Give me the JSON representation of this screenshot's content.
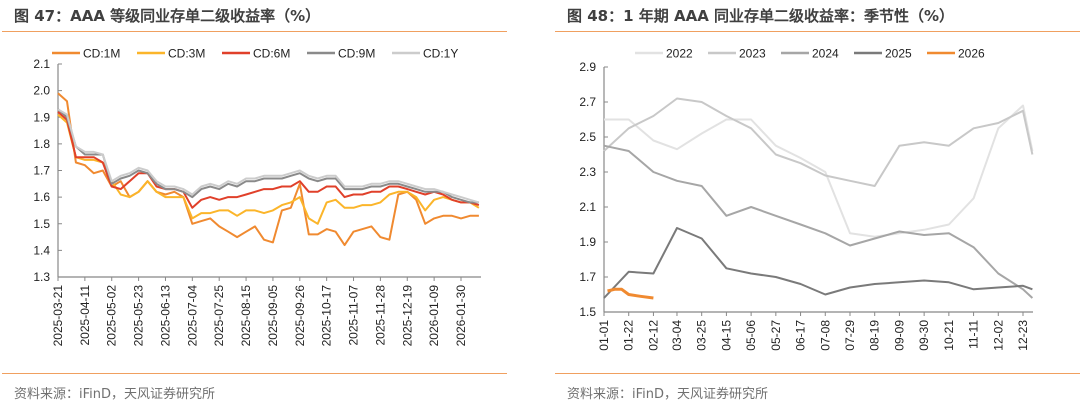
{
  "left": {
    "title": "图 47：AAA 等级同业存单二级收益率（%）",
    "source": "资料来源：iFinD，天风证券研究所"
  },
  "right": {
    "title": "图 48：1 年期 AAA 同业存单二级收益率：季节性（%）",
    "source": "资料来源：iFinD，天风证券研究所"
  },
  "chart_data": [
    {
      "type": "line",
      "title": "",
      "ylim": [
        1.3,
        2.1
      ],
      "yticks": [
        "1.3",
        "1.4",
        "1.5",
        "1.6",
        "1.7",
        "1.8",
        "1.9",
        "2.0",
        "2.1"
      ],
      "xticks": [
        "2025-03-21",
        "2025-04-11",
        "2025-05-02",
        "2025-05-23",
        "2025-06-13",
        "2025-07-04",
        "2025-07-25",
        "2025-08-15",
        "2025-09-05",
        "2025-09-26",
        "2025-10-17",
        "2025-11-07",
        "2025-11-28",
        "2025-12-19",
        "2026-01-09",
        "2026-01-30"
      ],
      "legend": "top",
      "grid": false,
      "x": [
        "2025-03-21",
        "2025-03-28",
        "2025-04-04",
        "2025-04-11",
        "2025-04-18",
        "2025-04-25",
        "2025-05-02",
        "2025-05-09",
        "2025-05-16",
        "2025-05-23",
        "2025-05-30",
        "2025-06-06",
        "2025-06-13",
        "2025-06-20",
        "2025-06-27",
        "2025-07-04",
        "2025-07-11",
        "2025-07-18",
        "2025-07-25",
        "2025-08-01",
        "2025-08-08",
        "2025-08-15",
        "2025-08-22",
        "2025-08-29",
        "2025-09-05",
        "2025-09-12",
        "2025-09-19",
        "2025-09-26",
        "2025-10-03",
        "2025-10-10",
        "2025-10-17",
        "2025-10-24",
        "2025-10-31",
        "2025-11-07",
        "2025-11-14",
        "2025-11-21",
        "2025-11-28",
        "2025-12-05",
        "2025-12-12",
        "2025-12-19",
        "2025-12-26",
        "2026-01-02",
        "2026-01-09",
        "2026-01-16",
        "2026-01-23",
        "2026-01-30",
        "2026-02-06",
        "2026-02-13"
      ],
      "series": [
        {
          "name": "CD:1M",
          "color": "#f08a30",
          "values": [
            1.99,
            1.96,
            1.73,
            1.72,
            1.69,
            1.7,
            1.64,
            1.66,
            1.6,
            1.62,
            1.66,
            1.62,
            1.61,
            1.62,
            1.6,
            1.5,
            1.51,
            1.52,
            1.49,
            1.47,
            1.45,
            1.47,
            1.49,
            1.44,
            1.43,
            1.55,
            1.56,
            1.65,
            1.46,
            1.46,
            1.48,
            1.47,
            1.42,
            1.47,
            1.48,
            1.49,
            1.45,
            1.44,
            1.61,
            1.62,
            1.59,
            1.5,
            1.52,
            1.53,
            1.53,
            1.52,
            1.53,
            1.53
          ]
        },
        {
          "name": "CD:3M",
          "color": "#fbb52a",
          "values": [
            1.91,
            1.88,
            1.75,
            1.74,
            1.74,
            1.73,
            1.66,
            1.61,
            1.6,
            1.62,
            1.66,
            1.62,
            1.6,
            1.6,
            1.6,
            1.52,
            1.54,
            1.54,
            1.55,
            1.55,
            1.53,
            1.55,
            1.55,
            1.54,
            1.55,
            1.57,
            1.58,
            1.6,
            1.52,
            1.5,
            1.58,
            1.59,
            1.56,
            1.56,
            1.57,
            1.57,
            1.58,
            1.61,
            1.62,
            1.62,
            1.6,
            1.55,
            1.59,
            1.6,
            1.59,
            1.58,
            1.58,
            1.56
          ]
        },
        {
          "name": "CD:6M",
          "color": "#e0402a",
          "values": [
            1.92,
            1.89,
            1.75,
            1.75,
            1.75,
            1.73,
            1.64,
            1.63,
            1.66,
            1.69,
            1.69,
            1.64,
            1.63,
            1.63,
            1.62,
            1.56,
            1.59,
            1.6,
            1.59,
            1.6,
            1.6,
            1.61,
            1.62,
            1.63,
            1.63,
            1.64,
            1.64,
            1.66,
            1.62,
            1.62,
            1.64,
            1.64,
            1.6,
            1.61,
            1.61,
            1.62,
            1.62,
            1.64,
            1.64,
            1.63,
            1.62,
            1.61,
            1.62,
            1.61,
            1.59,
            1.58,
            1.58,
            1.57
          ]
        },
        {
          "name": "CD:9M",
          "color": "#8a8a8a",
          "values": [
            1.93,
            1.9,
            1.79,
            1.76,
            1.76,
            1.76,
            1.65,
            1.67,
            1.68,
            1.7,
            1.69,
            1.65,
            1.63,
            1.63,
            1.62,
            1.6,
            1.63,
            1.64,
            1.63,
            1.65,
            1.64,
            1.66,
            1.66,
            1.67,
            1.67,
            1.67,
            1.68,
            1.69,
            1.67,
            1.66,
            1.67,
            1.67,
            1.63,
            1.63,
            1.63,
            1.64,
            1.64,
            1.65,
            1.65,
            1.64,
            1.63,
            1.62,
            1.62,
            1.62,
            1.6,
            1.59,
            1.58,
            1.58
          ]
        },
        {
          "name": "CD:1Y",
          "color": "#cccccc",
          "values": [
            1.93,
            1.91,
            1.79,
            1.77,
            1.77,
            1.76,
            1.66,
            1.68,
            1.69,
            1.71,
            1.7,
            1.66,
            1.64,
            1.64,
            1.63,
            1.61,
            1.64,
            1.65,
            1.64,
            1.66,
            1.65,
            1.67,
            1.67,
            1.68,
            1.68,
            1.68,
            1.69,
            1.7,
            1.68,
            1.67,
            1.68,
            1.68,
            1.64,
            1.64,
            1.64,
            1.65,
            1.65,
            1.66,
            1.66,
            1.65,
            1.64,
            1.63,
            1.63,
            1.62,
            1.61,
            1.6,
            1.59,
            1.58
          ]
        }
      ]
    },
    {
      "type": "line",
      "title": "",
      "ylim": [
        1.5,
        2.9
      ],
      "yticks": [
        "1.5",
        "1.7",
        "1.9",
        "2.1",
        "2.3",
        "2.5",
        "2.7",
        "2.9"
      ],
      "xticks": [
        "01-01",
        "01-22",
        "02-12",
        "03-04",
        "03-25",
        "04-15",
        "05-06",
        "05-27",
        "06-17",
        "07-08",
        "07-29",
        "08-19",
        "09-09",
        "09-30",
        "10-21",
        "11-11",
        "12-02",
        "12-23"
      ],
      "legend": "top",
      "grid": false,
      "x": [
        "01-01",
        "01-22",
        "02-12",
        "03-04",
        "03-25",
        "04-15",
        "05-06",
        "05-27",
        "06-17",
        "07-08",
        "07-29",
        "08-19",
        "09-09",
        "09-30",
        "10-21",
        "11-11",
        "12-02",
        "12-23",
        "12-31"
      ],
      "series": [
        {
          "name": "2022",
          "color": "#e2e2e2",
          "values": [
            2.6,
            2.6,
            2.48,
            2.43,
            2.52,
            2.6,
            2.6,
            2.45,
            2.38,
            2.3,
            1.95,
            1.93,
            1.95,
            1.97,
            2.0,
            2.15,
            2.55,
            2.68,
            2.42
          ]
        },
        {
          "name": "2023",
          "color": "#c8c8c8",
          "values": [
            2.42,
            2.55,
            2.62,
            2.72,
            2.7,
            2.62,
            2.55,
            2.4,
            2.35,
            2.28,
            2.25,
            2.22,
            2.45,
            2.47,
            2.45,
            2.55,
            2.58,
            2.65,
            2.4
          ]
        },
        {
          "name": "2024",
          "color": "#a6a6a6",
          "values": [
            2.45,
            2.42,
            2.3,
            2.25,
            2.22,
            2.05,
            2.1,
            2.05,
            2.0,
            1.95,
            1.88,
            1.92,
            1.96,
            1.94,
            1.95,
            1.87,
            1.72,
            1.63,
            1.58
          ]
        },
        {
          "name": "2025",
          "color": "#7a7a7a",
          "values": [
            1.58,
            1.73,
            1.72,
            1.98,
            1.92,
            1.75,
            1.72,
            1.7,
            1.66,
            1.6,
            1.64,
            1.66,
            1.67,
            1.68,
            1.67,
            1.63,
            1.64,
            1.65,
            1.63
          ]
        },
        {
          "name": "2026",
          "color": "#f08a30",
          "x": [
            "01-04",
            "01-10",
            "01-16",
            "01-22",
            "02-01",
            "02-12"
          ],
          "values": [
            1.62,
            1.63,
            1.63,
            1.6,
            1.59,
            1.58
          ]
        }
      ]
    }
  ]
}
